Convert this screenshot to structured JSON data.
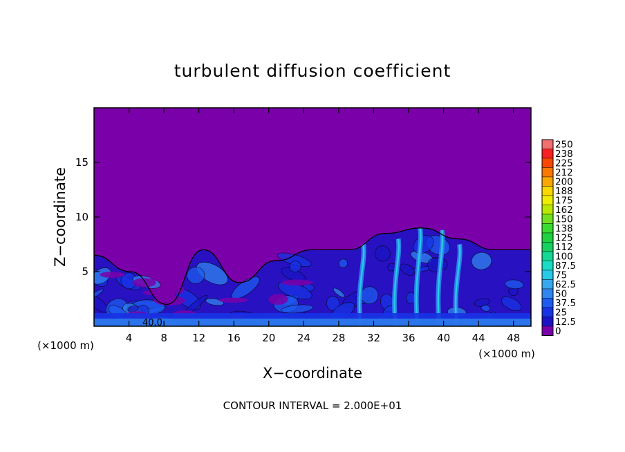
{
  "chart_data": {
    "type": "heatmap",
    "title": "turbulent diffusion coefficient",
    "xlabel": "X−coordinate",
    "ylabel": "Z−coordinate",
    "x_unit_left": "(×1000 m)",
    "x_unit_right": "(×1000 m)",
    "xlim": [
      0,
      50
    ],
    "ylim": [
      0,
      20
    ],
    "x_ticks": [
      4,
      8,
      12,
      16,
      20,
      24,
      28,
      32,
      36,
      40,
      44,
      48
    ],
    "y_ticks": [
      5,
      10,
      15
    ],
    "footer": "CONTOUR INTERVAL = 2.000E+01",
    "contour_label": "40.0",
    "colorbar": {
      "levels": [
        "0",
        "12.5",
        "25",
        "37.5",
        "50",
        "62.5",
        "75",
        "87.5",
        "100",
        "112",
        "125",
        "138",
        "150",
        "162",
        "175",
        "188",
        "200",
        "212",
        "225",
        "238",
        "250"
      ],
      "colors": [
        "#7a00aa",
        "#1a14c4",
        "#1733e4",
        "#1e5cf0",
        "#2f86ee",
        "#38a8ee",
        "#28c8e8",
        "#18dcc4",
        "#14d896",
        "#16d060",
        "#20d040",
        "#38dc30",
        "#70e020",
        "#b8e800",
        "#eeee00",
        "#f8d800",
        "#f8a800",
        "#f87800",
        "#f84800",
        "#f82020",
        "#f07070"
      ]
    },
    "background_value": 0,
    "turbulent_layer_top_approx": [
      6.5,
      5,
      2,
      7,
      4,
      6,
      7,
      7,
      8.5,
      9,
      8,
      7,
      7
    ],
    "grid": false
  }
}
